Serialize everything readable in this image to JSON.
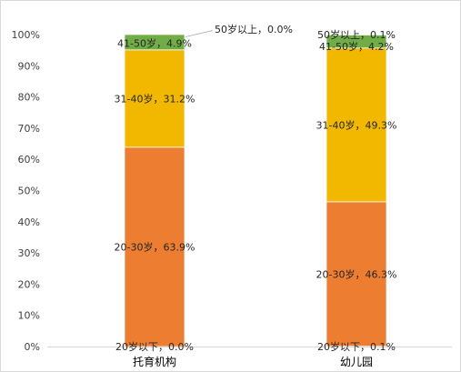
{
  "chart_data": {
    "type": "bar",
    "stacked": "percent",
    "categories": [
      "托育机构",
      "幼儿园"
    ],
    "series": [
      {
        "name": "20岁以下",
        "values": [
          0.0,
          0.1
        ],
        "labels": [
          "20岁以下，0.0%",
          "20岁以下，0.1%"
        ]
      },
      {
        "name": "20-30岁",
        "values": [
          63.9,
          46.3
        ],
        "labels": [
          "20-30岁，63.9%",
          "20-30岁，46.3%"
        ]
      },
      {
        "name": "31-40岁",
        "values": [
          31.2,
          49.3
        ],
        "labels": [
          "31-40岁，31.2%",
          "31-40岁，49.3%"
        ]
      },
      {
        "name": "41-50岁",
        "values": [
          4.9,
          4.2
        ],
        "labels": [
          "41-50岁，4.9%",
          "41-50岁，4.2%"
        ]
      },
      {
        "name": "50岁以上",
        "values": [
          0.0,
          0.1
        ],
        "labels": [
          "50岁以上，0.0%",
          "50岁以上，0.1%"
        ]
      }
    ],
    "yticks": [
      "0%",
      "10%",
      "20%",
      "30%",
      "40%",
      "50%",
      "60%",
      "70%",
      "80%",
      "90%",
      "100%"
    ],
    "ylim": [
      0,
      100
    ],
    "grid": false,
    "legend": "none"
  },
  "colors": {
    "20岁以下": "#5b9bd5",
    "20-30岁": "#ed7d31",
    "31-40岁": "#f2b800",
    "41-50岁": "#70ad47",
    "50岁以上": "#5b9bd5",
    "axis": "#d9d9d9",
    "separator": "#ffffff",
    "leader": "#a6a6a6"
  }
}
